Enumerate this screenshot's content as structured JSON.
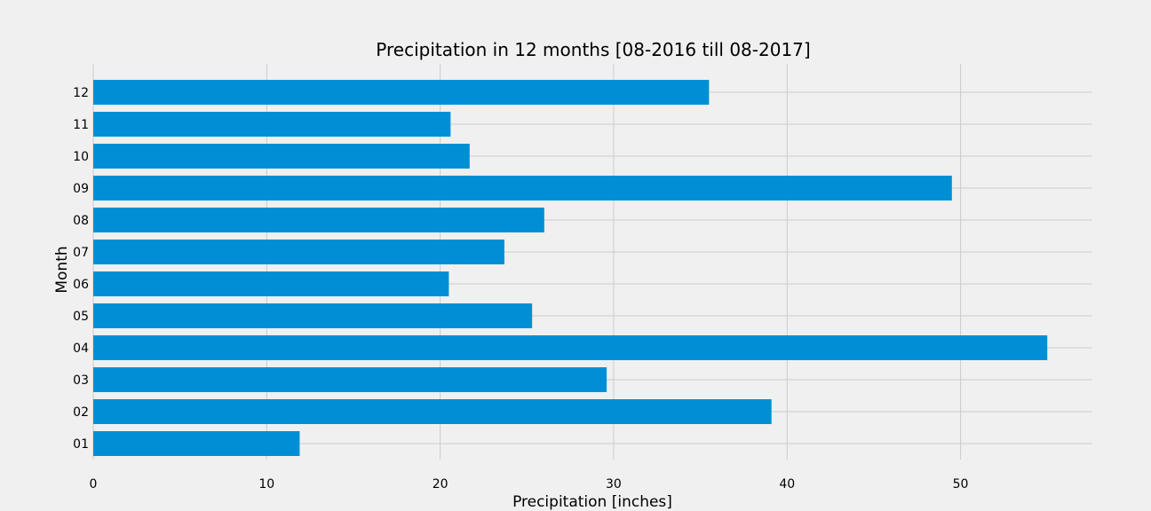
{
  "chart_data": {
    "type": "bar",
    "orientation": "horizontal",
    "title": "Precipitation in 12 months [08-2016 till 08-2017]",
    "xlabel": "Precipitation [inches]",
    "ylabel": "Month",
    "xlim": [
      0,
      57.6
    ],
    "xticks": [
      0,
      10,
      20,
      30,
      40,
      50
    ],
    "categories": [
      "01",
      "02",
      "03",
      "04",
      "05",
      "06",
      "07",
      "08",
      "09",
      "10",
      "11",
      "12"
    ],
    "values": [
      11.9,
      39.1,
      29.6,
      55.0,
      25.3,
      20.5,
      23.7,
      26.0,
      49.5,
      21.7,
      20.6,
      35.5
    ],
    "grid": true,
    "colors": {
      "bar": "#008fd5",
      "background": "#f0f0f0",
      "grid": "#cbcbcb"
    }
  }
}
